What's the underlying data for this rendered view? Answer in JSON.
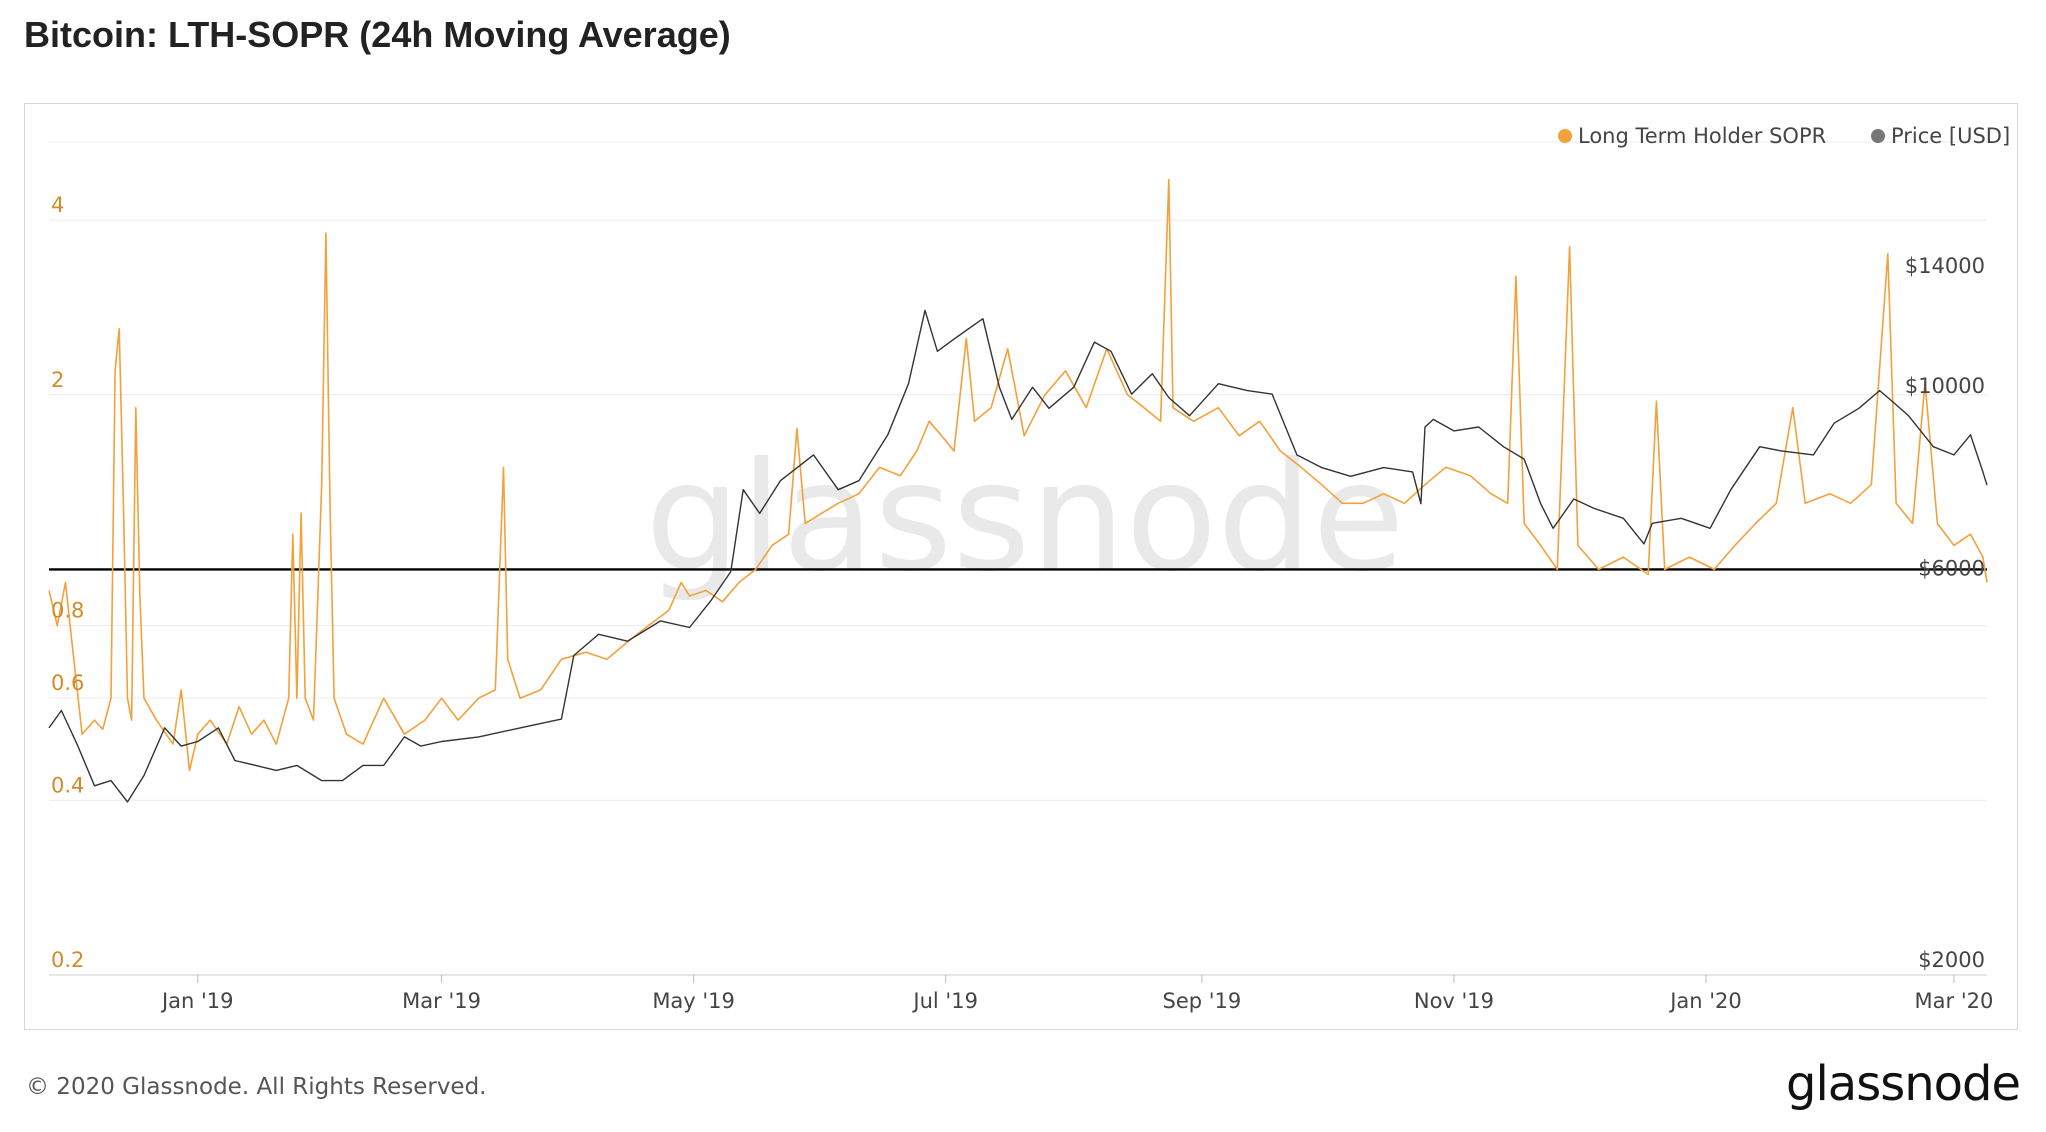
{
  "page": {
    "title": "Bitcoin: LTH-SOPR (24h Moving Average)",
    "copyright": "© 2020 Glassnode. All Rights Reserved.",
    "brand": "glassnode",
    "watermark": "glassnode"
  },
  "colors": {
    "sopr": "#f2a13b",
    "price": "#333333",
    "reference_line": "#000000",
    "left_tick": "#d38b2a",
    "grid": "#ececec"
  },
  "chart_data": {
    "type": "line",
    "x_range": [
      "2018-11-26",
      "2020-03-09"
    ],
    "x_ticks": [
      "Jan '19",
      "Mar '19",
      "May '19",
      "Jul '19",
      "Sep '19",
      "Nov '19",
      "Jan '20",
      "Mar '20"
    ],
    "x_tick_dates": [
      "2019-01-01",
      "2019-03-01",
      "2019-05-01",
      "2019-07-01",
      "2019-09-01",
      "2019-11-01",
      "2020-01-01",
      "2020-03-01"
    ],
    "left_axis": {
      "scale": "log",
      "range": [
        0.2,
        5.2
      ],
      "ticks": [
        0.2,
        0.4,
        0.6,
        0.8,
        2,
        4
      ],
      "tick_labels": [
        "0.2",
        "0.4",
        "0.6",
        "0.8",
        "2",
        "4"
      ]
    },
    "right_axis": {
      "scale": "log",
      "range": [
        2000,
        20000
      ],
      "ticks": [
        2000,
        6000,
        10000,
        14000
      ],
      "tick_labels": [
        "$2000",
        "$6000",
        "$10000",
        "$14000"
      ]
    },
    "reference_line": {
      "axis": "left",
      "value": 1
    },
    "grid": true,
    "legend": {
      "position": "top-right",
      "entries": [
        "Long Term Holder SOPR",
        "Price [USD]"
      ]
    },
    "series": [
      {
        "name": "Long Term Holder SOPR",
        "axis": "left",
        "color": "#f2a13b",
        "points": [
          [
            "2018-11-26",
            0.92
          ],
          [
            "2018-11-28",
            0.8
          ],
          [
            "2018-11-30",
            0.95
          ],
          [
            "2018-12-02",
            0.7
          ],
          [
            "2018-12-04",
            0.52
          ],
          [
            "2018-12-07",
            0.55
          ],
          [
            "2018-12-09",
            0.53
          ],
          [
            "2018-12-11",
            0.6
          ],
          [
            "2018-12-12",
            2.2
          ],
          [
            "2018-12-13",
            2.6
          ],
          [
            "2018-12-14",
            1.3
          ],
          [
            "2018-12-15",
            0.6
          ],
          [
            "2018-12-16",
            0.55
          ],
          [
            "2018-12-17",
            1.9
          ],
          [
            "2018-12-18",
            0.9
          ],
          [
            "2018-12-19",
            0.6
          ],
          [
            "2018-12-22",
            0.55
          ],
          [
            "2018-12-26",
            0.5
          ],
          [
            "2018-12-28",
            0.62
          ],
          [
            "2018-12-30",
            0.45
          ],
          [
            "2019-01-01",
            0.52
          ],
          [
            "2019-01-04",
            0.55
          ],
          [
            "2019-01-08",
            0.5
          ],
          [
            "2019-01-11",
            0.58
          ],
          [
            "2019-01-14",
            0.52
          ],
          [
            "2019-01-17",
            0.55
          ],
          [
            "2019-01-20",
            0.5
          ],
          [
            "2019-01-23",
            0.6
          ],
          [
            "2019-01-24",
            1.15
          ],
          [
            "2019-01-25",
            0.6
          ],
          [
            "2019-01-26",
            1.25
          ],
          [
            "2019-01-27",
            0.6
          ],
          [
            "2019-01-29",
            0.55
          ],
          [
            "2019-01-31",
            1.4
          ],
          [
            "2019-02-01",
            3.8
          ],
          [
            "2019-02-02",
            1.3
          ],
          [
            "2019-02-03",
            0.6
          ],
          [
            "2019-02-06",
            0.52
          ],
          [
            "2019-02-10",
            0.5
          ],
          [
            "2019-02-15",
            0.6
          ],
          [
            "2019-02-20",
            0.52
          ],
          [
            "2019-02-25",
            0.55
          ],
          [
            "2019-03-01",
            0.6
          ],
          [
            "2019-03-05",
            0.55
          ],
          [
            "2019-03-10",
            0.6
          ],
          [
            "2019-03-14",
            0.62
          ],
          [
            "2019-03-16",
            1.5
          ],
          [
            "2019-03-17",
            0.7
          ],
          [
            "2019-03-20",
            0.6
          ],
          [
            "2019-03-25",
            0.62
          ],
          [
            "2019-03-30",
            0.7
          ],
          [
            "2019-04-05",
            0.72
          ],
          [
            "2019-04-10",
            0.7
          ],
          [
            "2019-04-15",
            0.75
          ],
          [
            "2019-04-20",
            0.8
          ],
          [
            "2019-04-25",
            0.85
          ],
          [
            "2019-04-28",
            0.95
          ],
          [
            "2019-04-30",
            0.9
          ],
          [
            "2019-05-04",
            0.92
          ],
          [
            "2019-05-08",
            0.88
          ],
          [
            "2019-05-12",
            0.95
          ],
          [
            "2019-05-16",
            1.0
          ],
          [
            "2019-05-20",
            1.1
          ],
          [
            "2019-05-24",
            1.15
          ],
          [
            "2019-05-26",
            1.75
          ],
          [
            "2019-05-28",
            1.2
          ],
          [
            "2019-06-01",
            1.25
          ],
          [
            "2019-06-05",
            1.3
          ],
          [
            "2019-06-10",
            1.35
          ],
          [
            "2019-06-15",
            1.5
          ],
          [
            "2019-06-20",
            1.45
          ],
          [
            "2019-06-24",
            1.6
          ],
          [
            "2019-06-27",
            1.8
          ],
          [
            "2019-06-30",
            1.7
          ],
          [
            "2019-07-03",
            1.6
          ],
          [
            "2019-07-06",
            2.5
          ],
          [
            "2019-07-08",
            1.8
          ],
          [
            "2019-07-12",
            1.9
          ],
          [
            "2019-07-16",
            2.4
          ],
          [
            "2019-07-20",
            1.7
          ],
          [
            "2019-07-25",
            2.0
          ],
          [
            "2019-07-30",
            2.2
          ],
          [
            "2019-08-04",
            1.9
          ],
          [
            "2019-08-09",
            2.4
          ],
          [
            "2019-08-14",
            2.0
          ],
          [
            "2019-08-18",
            1.9
          ],
          [
            "2019-08-22",
            1.8
          ],
          [
            "2019-08-24",
            4.7
          ],
          [
            "2019-08-25",
            1.9
          ],
          [
            "2019-08-30",
            1.8
          ],
          [
            "2019-09-05",
            1.9
          ],
          [
            "2019-09-10",
            1.7
          ],
          [
            "2019-09-15",
            1.8
          ],
          [
            "2019-09-20",
            1.6
          ],
          [
            "2019-09-25",
            1.5
          ],
          [
            "2019-09-30",
            1.4
          ],
          [
            "2019-10-05",
            1.3
          ],
          [
            "2019-10-10",
            1.3
          ],
          [
            "2019-10-15",
            1.35
          ],
          [
            "2019-10-20",
            1.3
          ],
          [
            "2019-10-25",
            1.4
          ],
          [
            "2019-10-30",
            1.5
          ],
          [
            "2019-11-05",
            1.45
          ],
          [
            "2019-11-10",
            1.35
          ],
          [
            "2019-11-14",
            1.3
          ],
          [
            "2019-11-16",
            3.2
          ],
          [
            "2019-11-18",
            1.2
          ],
          [
            "2019-11-22",
            1.1
          ],
          [
            "2019-11-26",
            1.0
          ],
          [
            "2019-11-29",
            3.6
          ],
          [
            "2019-12-01",
            1.1
          ],
          [
            "2019-12-06",
            1.0
          ],
          [
            "2019-12-12",
            1.05
          ],
          [
            "2019-12-18",
            0.98
          ],
          [
            "2019-12-20",
            1.95
          ],
          [
            "2019-12-22",
            1.0
          ],
          [
            "2019-12-28",
            1.05
          ],
          [
            "2020-01-03",
            1.0
          ],
          [
            "2020-01-08",
            1.1
          ],
          [
            "2020-01-13",
            1.2
          ],
          [
            "2020-01-18",
            1.3
          ],
          [
            "2020-01-22",
            1.9
          ],
          [
            "2020-01-25",
            1.3
          ],
          [
            "2020-01-31",
            1.35
          ],
          [
            "2020-02-05",
            1.3
          ],
          [
            "2020-02-10",
            1.4
          ],
          [
            "2020-02-14",
            3.5
          ],
          [
            "2020-02-16",
            1.3
          ],
          [
            "2020-02-20",
            1.2
          ],
          [
            "2020-02-23",
            2.1
          ],
          [
            "2020-02-26",
            1.2
          ],
          [
            "2020-03-01",
            1.1
          ],
          [
            "2020-03-05",
            1.15
          ],
          [
            "2020-03-08",
            1.05
          ],
          [
            "2020-03-09",
            0.95
          ]
        ]
      },
      {
        "name": "Price [USD]",
        "axis": "right",
        "color": "#333333",
        "points": [
          [
            "2018-11-26",
            4000
          ],
          [
            "2018-11-29",
            4200
          ],
          [
            "2018-12-03",
            3800
          ],
          [
            "2018-12-07",
            3400
          ],
          [
            "2018-12-11",
            3450
          ],
          [
            "2018-12-15",
            3250
          ],
          [
            "2018-12-19",
            3500
          ],
          [
            "2018-12-24",
            4000
          ],
          [
            "2018-12-28",
            3800
          ],
          [
            "2019-01-01",
            3850
          ],
          [
            "2019-01-06",
            4000
          ],
          [
            "2019-01-10",
            3650
          ],
          [
            "2019-01-15",
            3600
          ],
          [
            "2019-01-20",
            3550
          ],
          [
            "2019-01-25",
            3600
          ],
          [
            "2019-01-31",
            3450
          ],
          [
            "2019-02-05",
            3450
          ],
          [
            "2019-02-10",
            3600
          ],
          [
            "2019-02-15",
            3600
          ],
          [
            "2019-02-20",
            3900
          ],
          [
            "2019-02-24",
            3800
          ],
          [
            "2019-03-01",
            3850
          ],
          [
            "2019-03-10",
            3900
          ],
          [
            "2019-03-20",
            4000
          ],
          [
            "2019-03-30",
            4100
          ],
          [
            "2019-04-02",
            4900
          ],
          [
            "2019-04-08",
            5200
          ],
          [
            "2019-04-15",
            5100
          ],
          [
            "2019-04-23",
            5400
          ],
          [
            "2019-04-30",
            5300
          ],
          [
            "2019-05-05",
            5700
          ],
          [
            "2019-05-10",
            6200
          ],
          [
            "2019-05-13",
            7800
          ],
          [
            "2019-05-17",
            7300
          ],
          [
            "2019-05-22",
            8000
          ],
          [
            "2019-05-30",
            8600
          ],
          [
            "2019-06-05",
            7800
          ],
          [
            "2019-06-10",
            8000
          ],
          [
            "2019-06-17",
            9100
          ],
          [
            "2019-06-22",
            10500
          ],
          [
            "2019-06-26",
            12900
          ],
          [
            "2019-06-29",
            11500
          ],
          [
            "2019-07-03",
            11900
          ],
          [
            "2019-07-10",
            12600
          ],
          [
            "2019-07-14",
            10400
          ],
          [
            "2019-07-17",
            9500
          ],
          [
            "2019-07-22",
            10400
          ],
          [
            "2019-07-26",
            9800
          ],
          [
            "2019-08-01",
            10400
          ],
          [
            "2019-08-06",
            11800
          ],
          [
            "2019-08-10",
            11500
          ],
          [
            "2019-08-15",
            10200
          ],
          [
            "2019-08-20",
            10800
          ],
          [
            "2019-08-24",
            10100
          ],
          [
            "2019-08-29",
            9600
          ],
          [
            "2019-09-05",
            10500
          ],
          [
            "2019-09-12",
            10300
          ],
          [
            "2019-09-18",
            10200
          ],
          [
            "2019-09-24",
            8600
          ],
          [
            "2019-09-30",
            8300
          ],
          [
            "2019-10-07",
            8100
          ],
          [
            "2019-10-15",
            8300
          ],
          [
            "2019-10-22",
            8200
          ],
          [
            "2019-10-24",
            7500
          ],
          [
            "2019-10-25",
            9300
          ],
          [
            "2019-10-27",
            9500
          ],
          [
            "2019-11-01",
            9200
          ],
          [
            "2019-11-07",
            9300
          ],
          [
            "2019-11-13",
            8800
          ],
          [
            "2019-11-18",
            8500
          ],
          [
            "2019-11-22",
            7500
          ],
          [
            "2019-11-25",
            7000
          ],
          [
            "2019-11-30",
            7600
          ],
          [
            "2019-12-05",
            7400
          ],
          [
            "2019-12-12",
            7200
          ],
          [
            "2019-12-17",
            6700
          ],
          [
            "2019-12-19",
            7100
          ],
          [
            "2019-12-26",
            7200
          ],
          [
            "2020-01-02",
            7000
          ],
          [
            "2020-01-07",
            7800
          ],
          [
            "2020-01-14",
            8800
          ],
          [
            "2020-01-19",
            8700
          ],
          [
            "2020-01-27",
            8600
          ],
          [
            "2020-02-01",
            9400
          ],
          [
            "2020-02-07",
            9800
          ],
          [
            "2020-02-12",
            10300
          ],
          [
            "2020-02-15",
            10000
          ],
          [
            "2020-02-19",
            9600
          ],
          [
            "2020-02-25",
            8800
          ],
          [
            "2020-03-01",
            8600
          ],
          [
            "2020-03-05",
            9100
          ],
          [
            "2020-03-08",
            8200
          ],
          [
            "2020-03-09",
            7900
          ]
        ]
      }
    ]
  }
}
